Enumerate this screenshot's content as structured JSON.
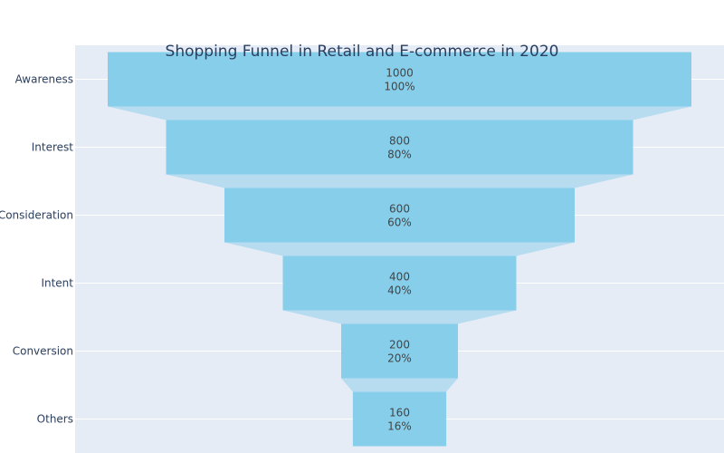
{
  "chart_data": {
    "type": "funnel",
    "title": "Shopping Funnel in Retail and E-commerce in 2020",
    "categories": [
      "Awareness",
      "Interest",
      "Consideration",
      "Intent",
      "Conversion",
      "Others"
    ],
    "values": [
      1000,
      800,
      600,
      400,
      200,
      160
    ],
    "percent_labels": [
      "100%",
      "80%",
      "60%",
      "40%",
      "20%",
      "16%"
    ],
    "xlabel": "",
    "ylabel": "",
    "grid": true,
    "colors": {
      "bar": "#87ceeb",
      "connector": "#b7dcf0",
      "plot_bg": "#e5ecf6",
      "grid": "#ffffff",
      "title": "#2a3f5f",
      "tick": "#2a3f5f",
      "label": "#444444"
    }
  }
}
